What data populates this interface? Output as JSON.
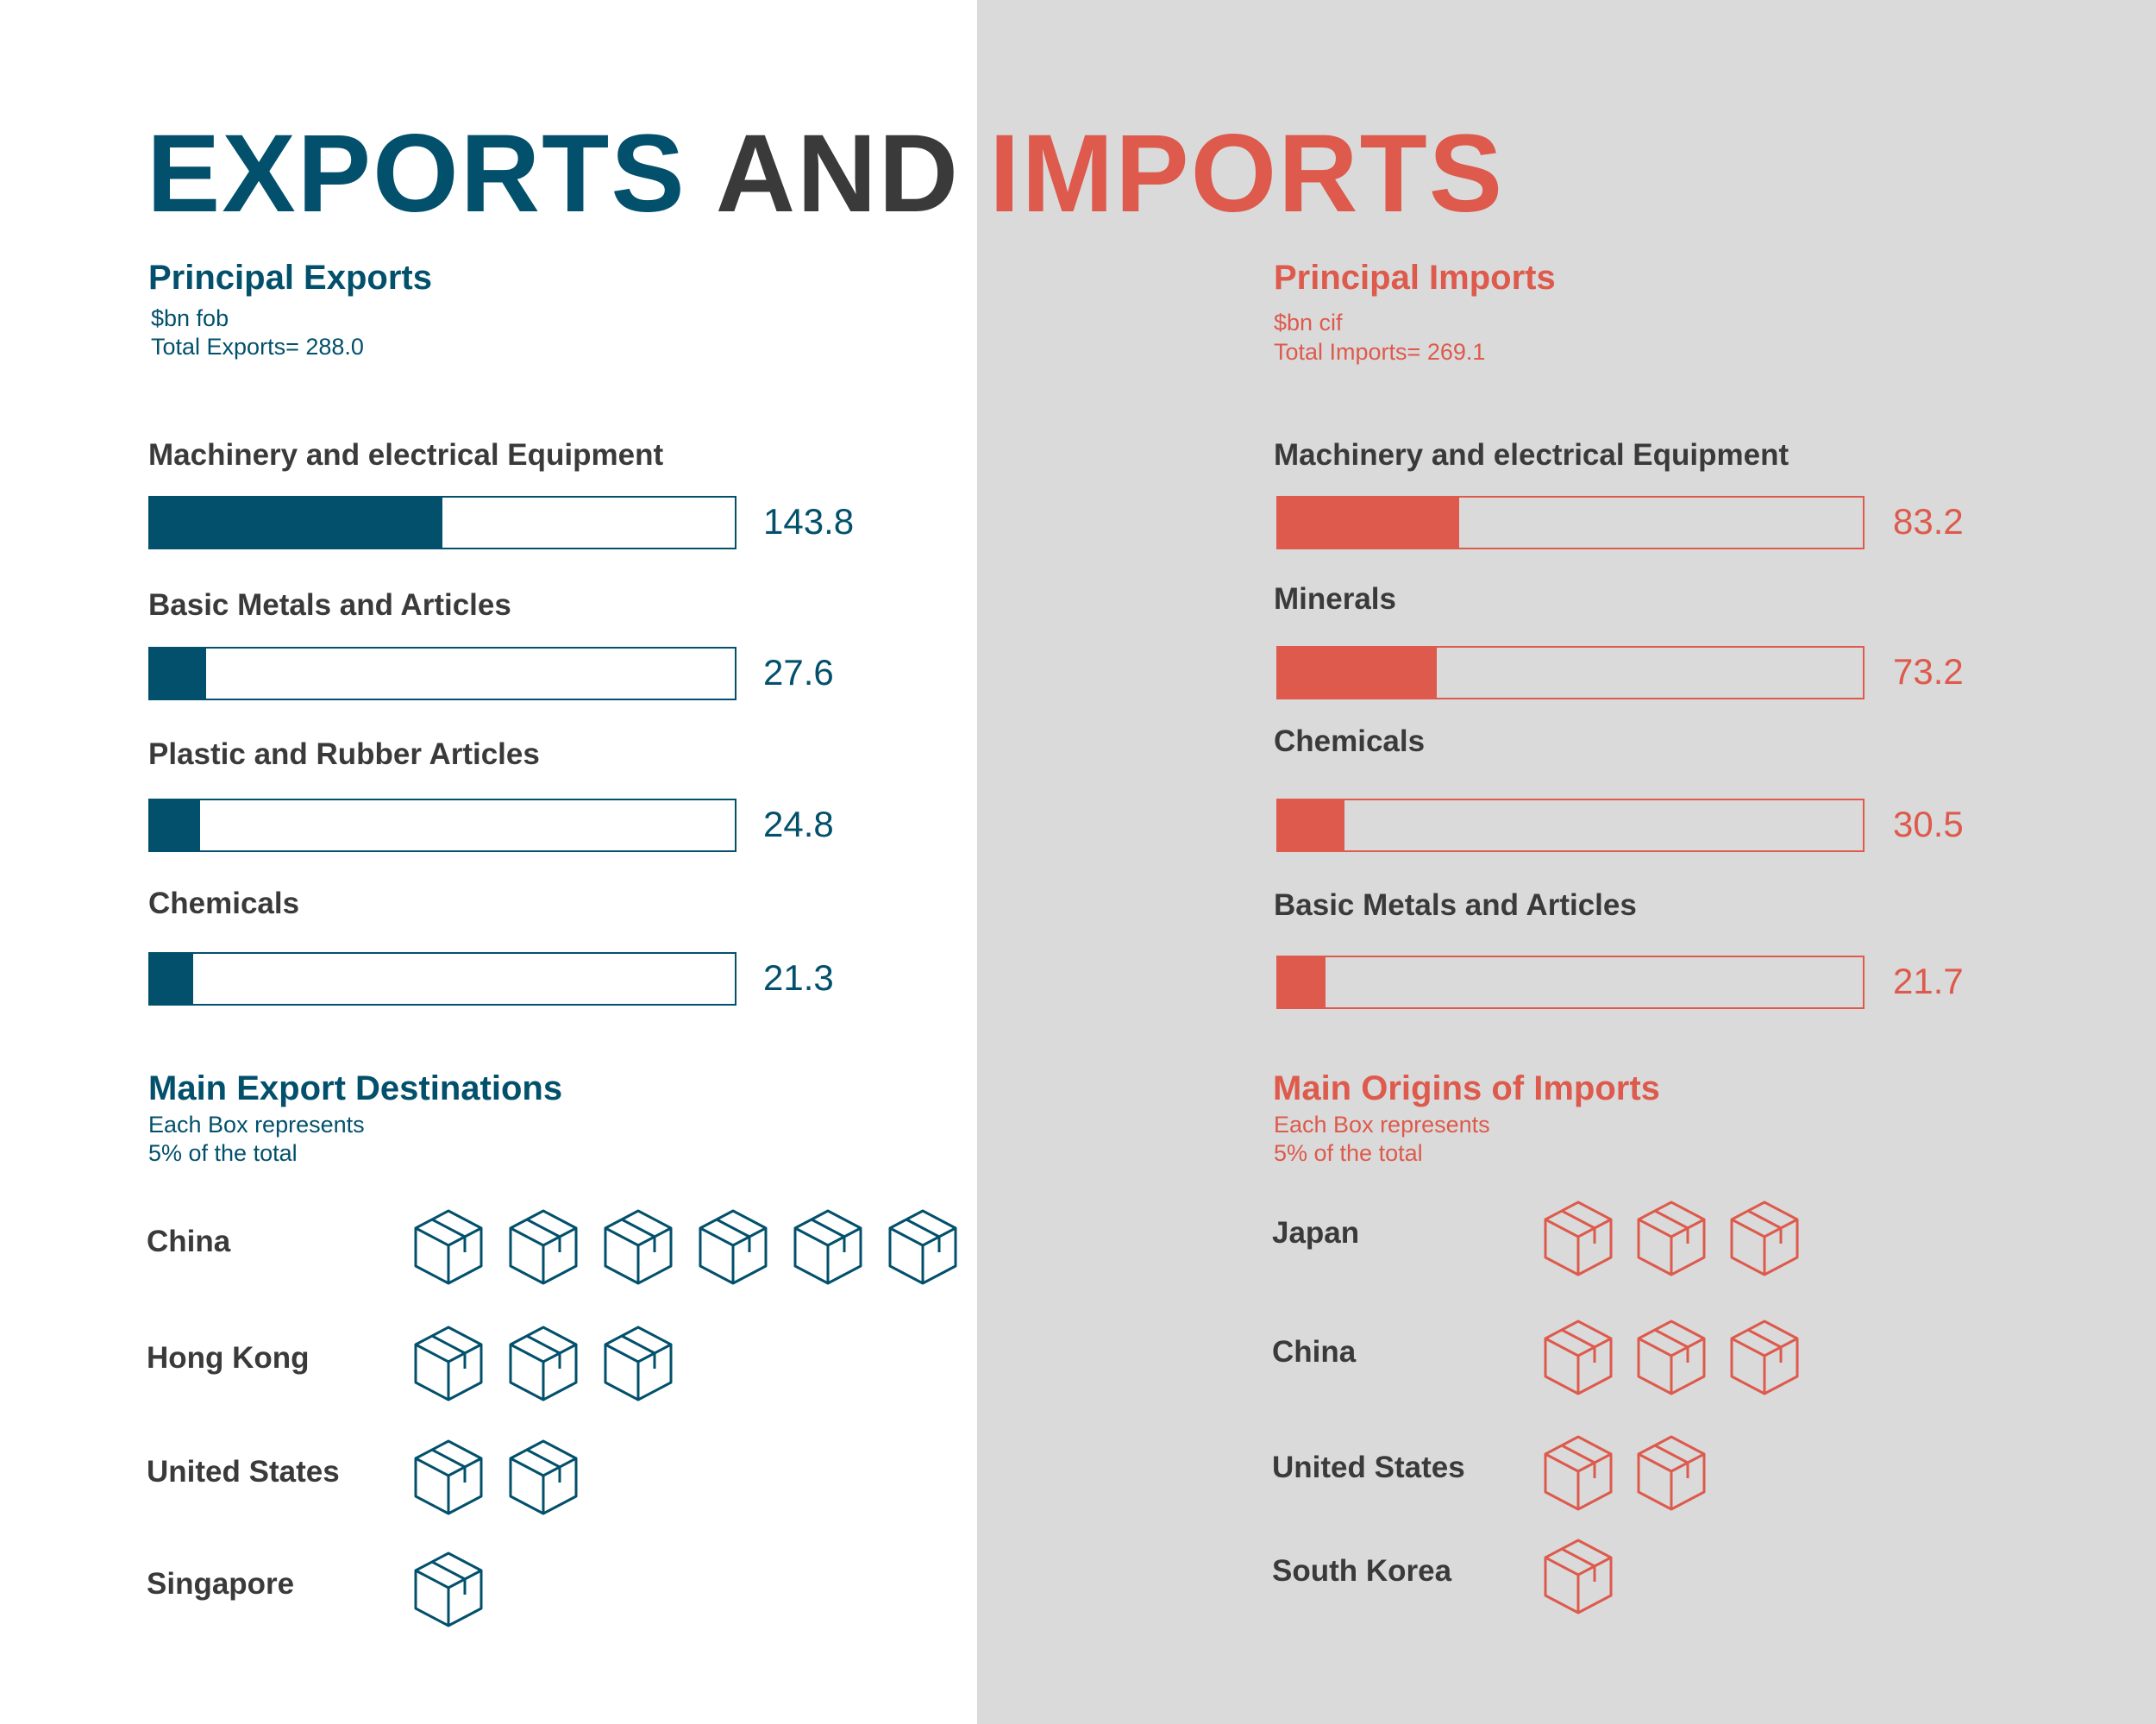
{
  "title": {
    "part1": "EXPORTS",
    "part2": "AND",
    "part3": "IMPORTS"
  },
  "colors": {
    "exports": "#02506b",
    "imports": "#dd5a4c",
    "neutral": "#3a3a3a",
    "panel_bg": "#dadada"
  },
  "exports": {
    "heading": "Principal Exports",
    "unit": "$bn fob",
    "total_label": "Total Exports= 288.0",
    "destinations_heading": "Main Export Destinations",
    "box_note_1": "Each Box represents",
    "box_note_2": "5% of the total",
    "items": [
      {
        "label": "Machinery and electrical Equipment",
        "value_text": "143.8"
      },
      {
        "label": "Basic Metals and Articles",
        "value_text": "27.6"
      },
      {
        "label": "Plastic and Rubber Articles",
        "value_text": "24.8"
      },
      {
        "label": "Chemicals",
        "value_text": "21.3"
      }
    ],
    "countries": [
      {
        "name": "China",
        "boxes": 6
      },
      {
        "name": "Hong Kong",
        "boxes": 3
      },
      {
        "name": "United States",
        "boxes": 2
      },
      {
        "name": "Singapore",
        "boxes": 1
      }
    ]
  },
  "imports": {
    "heading": "Principal Imports",
    "unit": "$bn cif",
    "total_label": "Total Imports= 269.1",
    "origins_heading": "Main Origins of Imports",
    "box_note_1": "Each Box represents",
    "box_note_2": "5% of the total",
    "items": [
      {
        "label": "Machinery and electrical Equipment",
        "value_text": "83.2"
      },
      {
        "label": "Minerals",
        "value_text": "73.2"
      },
      {
        "label": "Chemicals",
        "value_text": "30.5"
      },
      {
        "label": "Basic Metals and Articles",
        "value_text": "21.7"
      }
    ],
    "countries": [
      {
        "name": "Japan",
        "boxes": 3
      },
      {
        "name": "China",
        "boxes": 3
      },
      {
        "name": "United States",
        "boxes": 2
      },
      {
        "name": "South Korea",
        "boxes": 1
      }
    ]
  },
  "chart_data": [
    {
      "type": "bar",
      "title": "Principal Exports",
      "categories": [
        "Machinery and electrical Equipment",
        "Basic Metals and Articles",
        "Plastic and Rubber Articles",
        "Chemicals"
      ],
      "values": [
        143.8,
        27.6,
        24.8,
        21.3
      ],
      "total": 288.0,
      "orientation": "horizontal"
    },
    {
      "type": "bar",
      "title": "Principal Imports",
      "categories": [
        "Machinery and electrical Equipment",
        "Minerals",
        "Chemicals",
        "Basic Metals and Articles"
      ],
      "values": [
        83.2,
        73.2,
        30.5,
        21.7
      ],
      "total": 269.1,
      "orientation": "horizontal"
    },
    {
      "type": "pictogram",
      "title": "Main Export Destinations",
      "categories": [
        "China",
        "Hong Kong",
        "United States",
        "Singapore"
      ],
      "values": [
        6,
        3,
        2,
        1
      ],
      "unit_per_icon_percent": 5
    },
    {
      "type": "pictogram",
      "title": "Main Origins of Imports",
      "categories": [
        "Japan",
        "China",
        "United States",
        "South Korea"
      ],
      "values": [
        3,
        3,
        2,
        1
      ],
      "unit_per_icon_percent": 5
    }
  ]
}
